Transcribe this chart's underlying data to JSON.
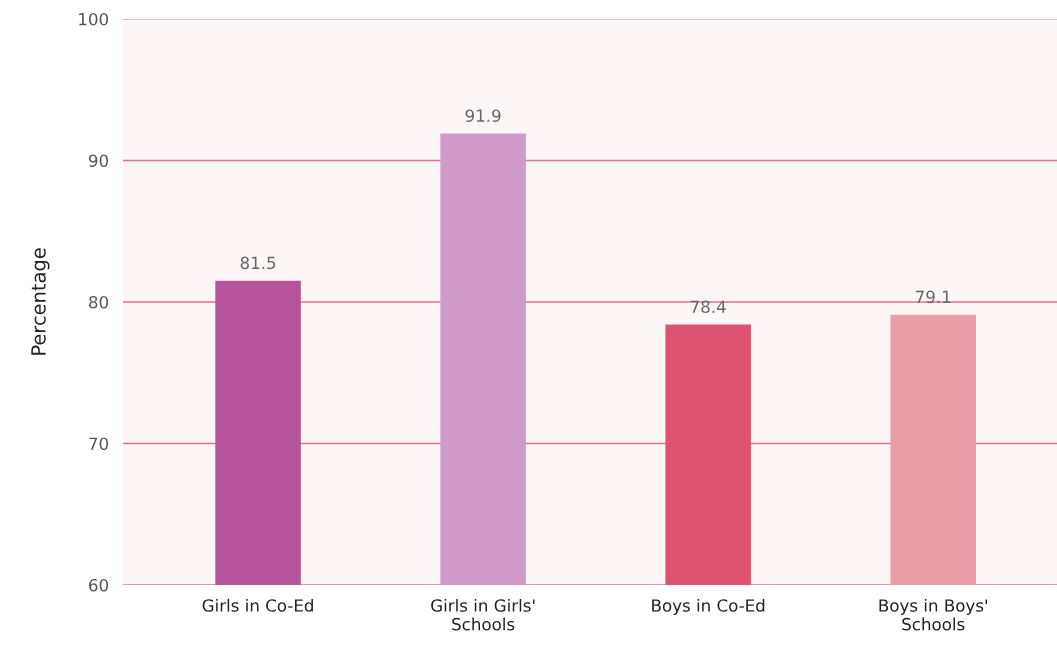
{
  "chart_data": {
    "type": "bar",
    "ylabel": "Percentage",
    "categories": [
      "Girls in Co-Ed",
      "Girls in Girls' Schools",
      "Boys in Co-Ed",
      "Boys in Boys' Schools"
    ],
    "values": [
      81.5,
      91.9,
      78.4,
      79.1
    ],
    "colors": [
      "#b5549a",
      "#d09ac6",
      "#de5272",
      "#eb9eaa"
    ],
    "ylim": [
      60,
      100
    ],
    "yticks": [
      60,
      70,
      80,
      90,
      100
    ],
    "grid": "y",
    "data_labels": true
  }
}
